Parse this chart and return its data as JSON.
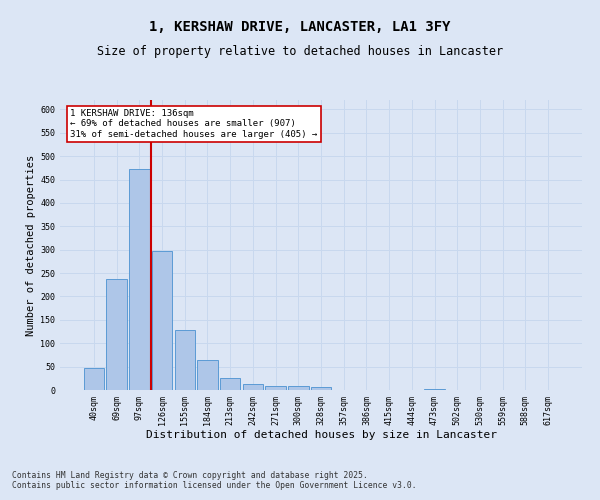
{
  "title": "1, KERSHAW DRIVE, LANCASTER, LA1 3FY",
  "subtitle": "Size of property relative to detached houses in Lancaster",
  "xlabel": "Distribution of detached houses by size in Lancaster",
  "ylabel": "Number of detached properties",
  "categories": [
    "40sqm",
    "69sqm",
    "97sqm",
    "126sqm",
    "155sqm",
    "184sqm",
    "213sqm",
    "242sqm",
    "271sqm",
    "300sqm",
    "328sqm",
    "357sqm",
    "386sqm",
    "415sqm",
    "444sqm",
    "473sqm",
    "502sqm",
    "530sqm",
    "559sqm",
    "588sqm",
    "617sqm"
  ],
  "values": [
    48,
    238,
    473,
    297,
    128,
    64,
    26,
    13,
    9,
    9,
    7,
    1,
    0,
    0,
    0,
    3,
    0,
    0,
    0,
    1,
    0
  ],
  "bar_color": "#aec6e8",
  "bar_edge_color": "#5b9bd5",
  "grid_color": "#c8d8ee",
  "background_color": "#dce6f5",
  "vline_index": 3,
  "vline_color": "#cc0000",
  "annotation_text": "1 KERSHAW DRIVE: 136sqm\n← 69% of detached houses are smaller (907)\n31% of semi-detached houses are larger (405) →",
  "annotation_box_color": "#ffffff",
  "annotation_box_edge": "#cc0000",
  "annotation_fontsize": 6.5,
  "ylim": [
    0,
    620
  ],
  "title_fontsize": 10,
  "subtitle_fontsize": 8.5,
  "xlabel_fontsize": 8,
  "ylabel_fontsize": 7.5,
  "tick_fontsize": 6,
  "footer_text": "Contains HM Land Registry data © Crown copyright and database right 2025.\nContains public sector information licensed under the Open Government Licence v3.0.",
  "footer_fontsize": 5.8
}
